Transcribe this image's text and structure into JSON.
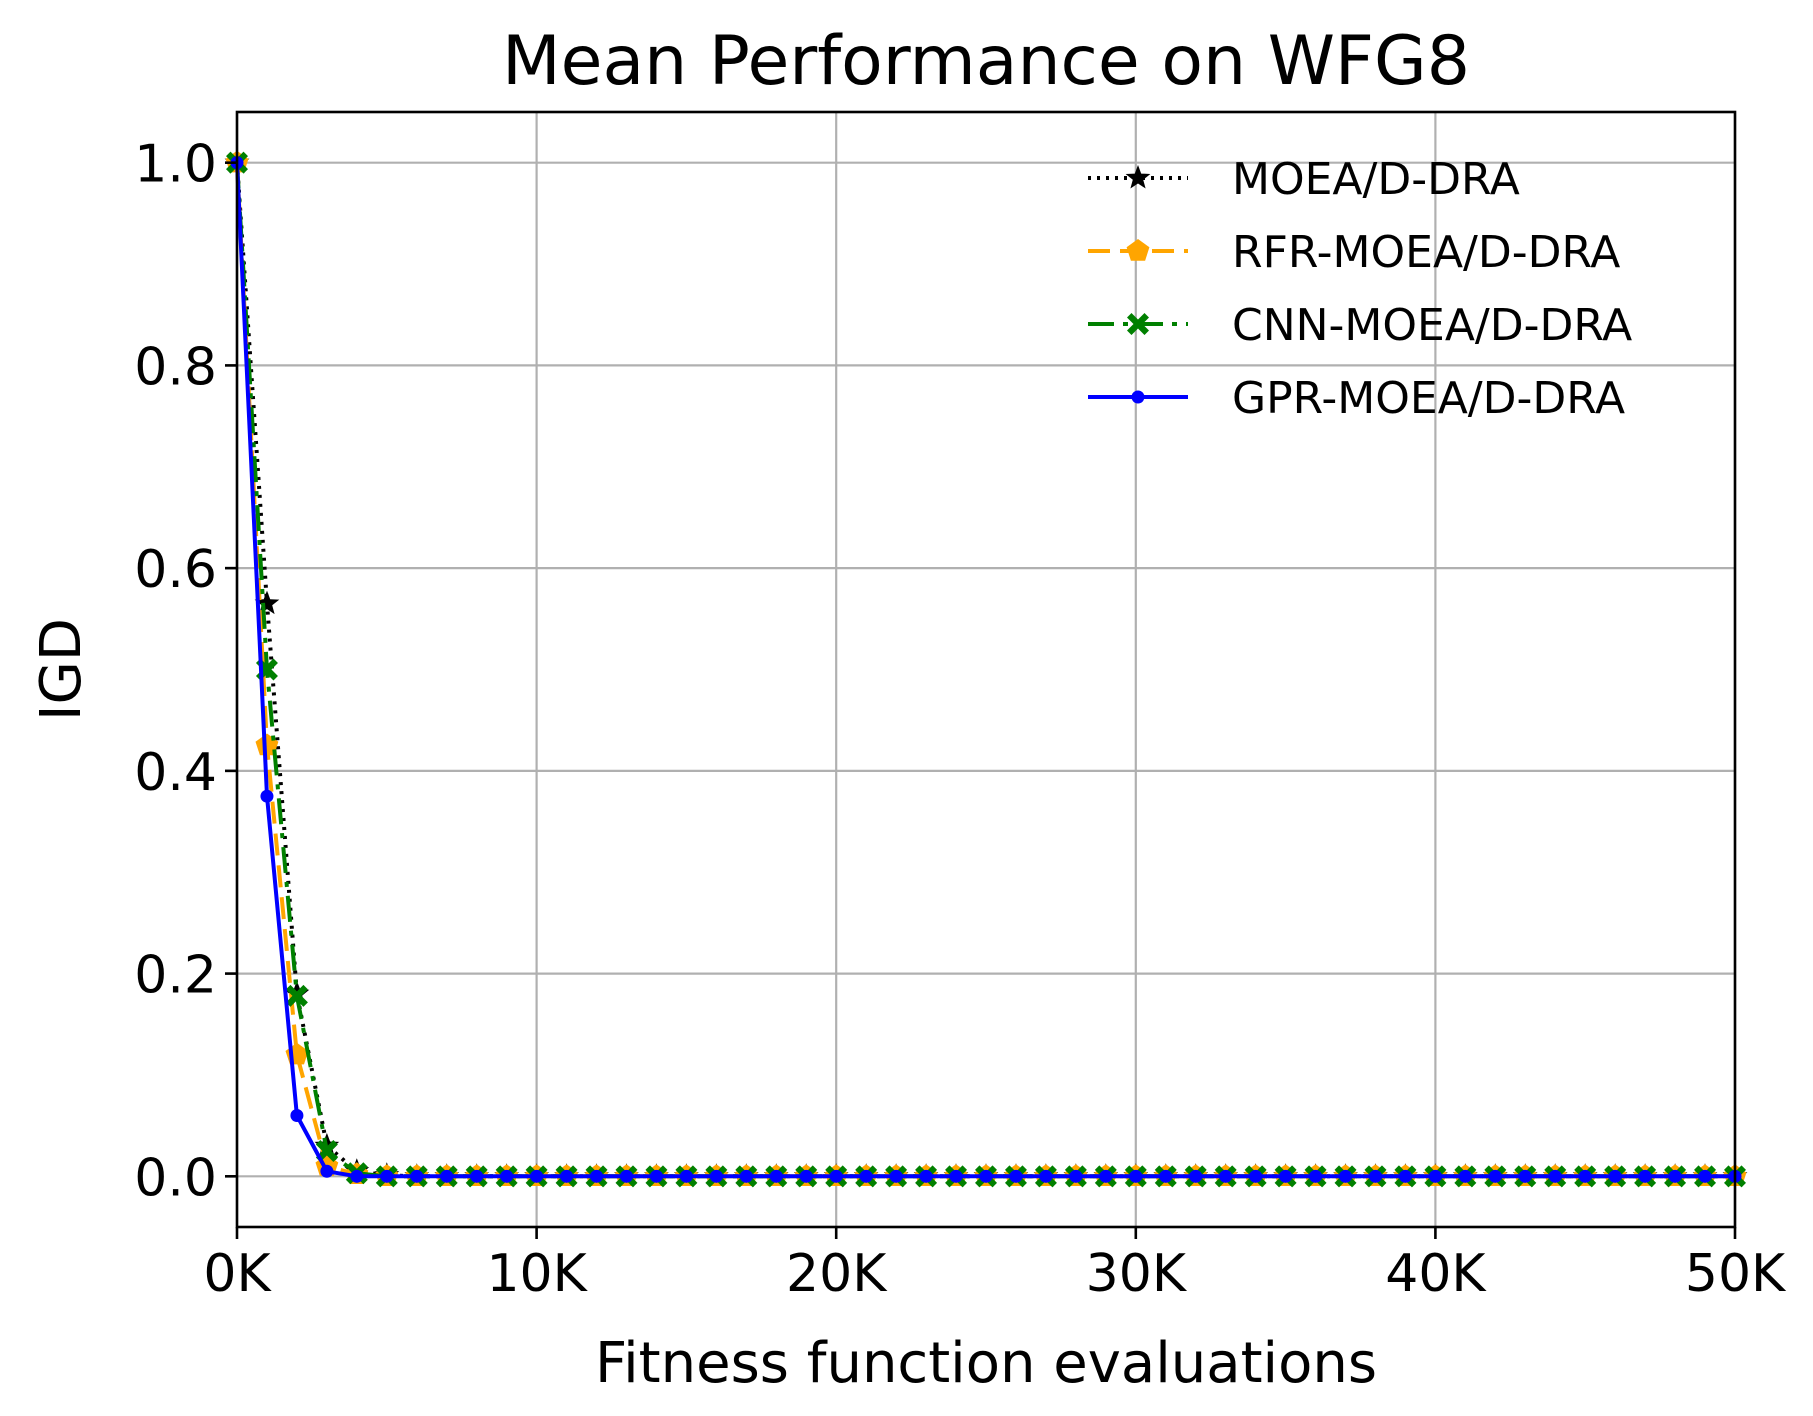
{
  "chart_data": {
    "type": "line",
    "title": "Mean Performance on WFG8",
    "xlabel": "Fitness function evaluations",
    "ylabel": "IGD",
    "xlim": [
      0,
      50000
    ],
    "ylim": [
      -0.05,
      1.05
    ],
    "grid": true,
    "legend_position": "top-right",
    "x_ticks": [
      {
        "value": 0,
        "label": "0K"
      },
      {
        "value": 10000,
        "label": "10K"
      },
      {
        "value": 20000,
        "label": "20K"
      },
      {
        "value": 30000,
        "label": "30K"
      },
      {
        "value": 40000,
        "label": "40K"
      },
      {
        "value": 50000,
        "label": "50K"
      }
    ],
    "y_ticks": [
      {
        "value": 0.0,
        "label": "0.0"
      },
      {
        "value": 0.2,
        "label": "0.2"
      },
      {
        "value": 0.4,
        "label": "0.4"
      },
      {
        "value": 0.6,
        "label": "0.6"
      },
      {
        "value": 0.8,
        "label": "0.8"
      },
      {
        "value": 1.0,
        "label": "1.0"
      }
    ],
    "x_step": 1000,
    "x_start": 0,
    "series": [
      {
        "name": "MOEA/D-DRA",
        "color": "#000000",
        "linestyle": "dotted",
        "marker": "star",
        "values": [
          1.0,
          0.565,
          0.18,
          0.03,
          0.005,
          0.001,
          0.0,
          0.0,
          0.0,
          0.0,
          0.0,
          0.0,
          0.0,
          0.0,
          0.0,
          0.0,
          0.0,
          0.0,
          0.0,
          0.0,
          0.0,
          0.0,
          0.0,
          0.0,
          0.0,
          0.0,
          0.0,
          0.0,
          0.0,
          0.0,
          0.0,
          0.0,
          0.0,
          0.0,
          0.0,
          0.0,
          0.0,
          0.0,
          0.0,
          0.0,
          0.0,
          0.0,
          0.0,
          0.0,
          0.0,
          0.0,
          0.0,
          0.0,
          0.0,
          0.0,
          0.0
        ]
      },
      {
        "name": "RFR-MOEA/D-DRA",
        "color": "#FFA500",
        "linestyle": "dashed",
        "marker": "pentagon",
        "values": [
          1.0,
          0.425,
          0.12,
          0.01,
          0.002,
          0.0,
          0.0,
          0.0,
          0.0,
          0.0,
          0.0,
          0.0,
          0.0,
          0.0,
          0.0,
          0.0,
          0.0,
          0.0,
          0.0,
          0.0,
          0.0,
          0.0,
          0.0,
          0.0,
          0.0,
          0.0,
          0.0,
          0.0,
          0.0,
          0.0,
          0.0,
          0.0,
          0.0,
          0.0,
          0.0,
          0.0,
          0.0,
          0.0,
          0.0,
          0.0,
          0.0,
          0.0,
          0.0,
          0.0,
          0.0,
          0.0,
          0.0,
          0.0,
          0.0,
          0.0,
          0.0
        ]
      },
      {
        "name": "CNN-MOEA/D-DRA",
        "color": "#008000",
        "linestyle": "dashdot",
        "marker": "x-filled",
        "values": [
          1.0,
          0.5,
          0.178,
          0.025,
          0.003,
          0.0,
          0.0,
          0.0,
          0.0,
          0.0,
          0.0,
          0.0,
          0.0,
          0.0,
          0.0,
          0.0,
          0.0,
          0.0,
          0.0,
          0.0,
          0.0,
          0.0,
          0.0,
          0.0,
          0.0,
          0.0,
          0.0,
          0.0,
          0.0,
          0.0,
          0.0,
          0.0,
          0.0,
          0.0,
          0.0,
          0.0,
          0.0,
          0.0,
          0.0,
          0.0,
          0.0,
          0.0,
          0.0,
          0.0,
          0.0,
          0.0,
          0.0,
          0.0,
          0.0,
          0.0,
          0.0
        ]
      },
      {
        "name": "GPR-MOEA/D-DRA",
        "color": "#0000FF",
        "linestyle": "solid",
        "marker": "dot",
        "values": [
          1.0,
          0.375,
          0.06,
          0.005,
          0.0,
          0.0,
          0.0,
          0.0,
          0.0,
          0.0,
          0.0,
          0.0,
          0.0,
          0.0,
          0.0,
          0.0,
          0.0,
          0.0,
          0.0,
          0.0,
          0.0,
          0.0,
          0.0,
          0.0,
          0.0,
          0.0,
          0.0,
          0.0,
          0.0,
          0.0,
          0.0,
          0.0,
          0.0,
          0.0,
          0.0,
          0.0,
          0.0,
          0.0,
          0.0,
          0.0,
          0.0,
          0.0,
          0.0,
          0.0,
          0.0,
          0.0,
          0.0,
          0.0,
          0.0,
          0.0,
          0.0
        ]
      }
    ]
  }
}
